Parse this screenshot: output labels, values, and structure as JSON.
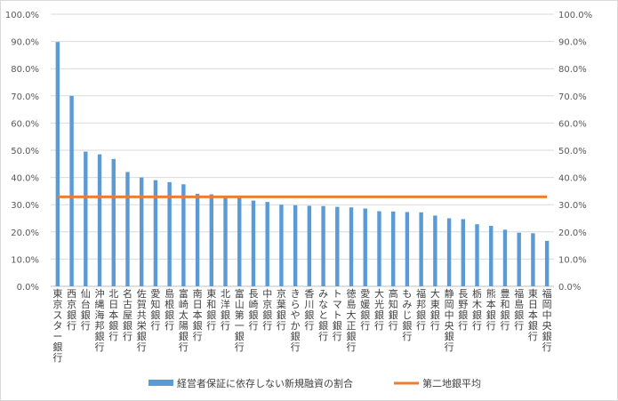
{
  "chart_data": {
    "type": "bar",
    "title": "",
    "xlabel": "",
    "ylabel": "",
    "ylim": [
      0,
      100
    ],
    "y_tick_format": "percent_1dp",
    "y_ticks": [
      "0.0%",
      "10.0%",
      "20.0%",
      "30.0%",
      "40.0%",
      "50.0%",
      "60.0%",
      "70.0%",
      "80.0%",
      "90.0%",
      "100.0%"
    ],
    "secondary_y_axis": true,
    "grid": true,
    "legend_position": "bottom",
    "categories": [
      "東京スター銀行",
      "西京銀行",
      "仙台銀行",
      "沖縄海邦銀行",
      "北日本銀行",
      "名古屋銀行",
      "佐賀共栄銀行",
      "愛知銀行",
      "島根銀行",
      "富崎太陽銀行",
      "南日本銀行",
      "東和銀行",
      "北洋銀行",
      "富山第一銀行",
      "長崎銀行",
      "中京銀行",
      "京葉銀行",
      "きらやか銀行",
      "香川銀行",
      "みなと銀行",
      "トマト銀行",
      "徳島大正銀行",
      "愛媛銀行",
      "大光銀行",
      "高知銀行",
      "もみじ銀行",
      "福邦銀行",
      "大東銀行",
      "静岡中央銀行",
      "長野銀行",
      "栃木銀行",
      "熊本銀行",
      "豊和銀行",
      "福島銀行",
      "東日本銀行",
      "福岡中央銀行"
    ],
    "series": [
      {
        "name": "経営者保証に依存しない新規融資の割合",
        "type": "bar",
        "color": "#5b9bd5",
        "values": [
          89.8,
          70.0,
          49.5,
          48.5,
          46.8,
          42.0,
          40.0,
          39.0,
          38.3,
          37.5,
          34.0,
          33.8,
          33.0,
          32.5,
          31.5,
          31.0,
          30.0,
          29.8,
          29.6,
          29.5,
          29.2,
          29.0,
          28.6,
          27.6,
          27.5,
          27.3,
          27.2,
          26.0,
          25.0,
          24.7,
          22.8,
          22.2,
          20.8,
          19.7,
          19.5,
          16.7
        ]
      },
      {
        "name": "第二地銀平均",
        "type": "line",
        "color": "#ed7d31",
        "value": 32.9
      }
    ]
  }
}
